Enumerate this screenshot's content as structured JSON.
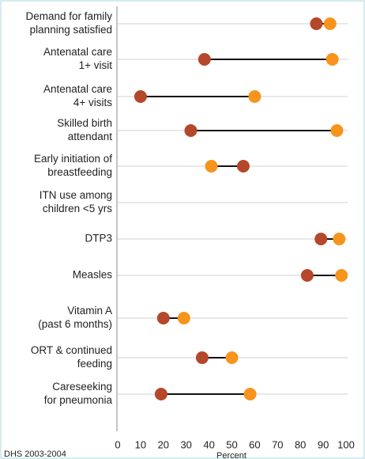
{
  "chart_data": {
    "type": "dumbbell",
    "categories": [
      [
        "Demand for family",
        "planning satisfied"
      ],
      [
        "Antenatal care",
        "1+ visit"
      ],
      [
        "Antenatal care",
        "4+ visits"
      ],
      [
        "Skilled birth",
        "attendant"
      ],
      [
        "Early initiation of",
        "breastfeeding"
      ],
      [
        "ITN use among",
        "children <5 yrs"
      ],
      [
        "DTP3"
      ],
      [
        "Measles"
      ],
      [
        "Vitamin A",
        "(past 6 months)"
      ],
      [
        "ORT & continued",
        "feeding"
      ],
      [
        "Careseeking",
        "for pneumonia"
      ]
    ],
    "series": [
      {
        "color": "#b5472a",
        "values": [
          87,
          38,
          10,
          32,
          55,
          null,
          89,
          83,
          20,
          37,
          19
        ]
      },
      {
        "color": "#f7941d",
        "values": [
          93,
          94,
          60,
          96,
          41,
          null,
          97,
          98,
          29,
          50,
          58
        ]
      }
    ],
    "xlabel": "Percent",
    "xlim": [
      0,
      100
    ],
    "xticks": [
      0,
      10,
      20,
      30,
      40,
      50,
      60,
      70,
      80,
      90,
      100
    ],
    "source": "DHS 2003-2004"
  }
}
